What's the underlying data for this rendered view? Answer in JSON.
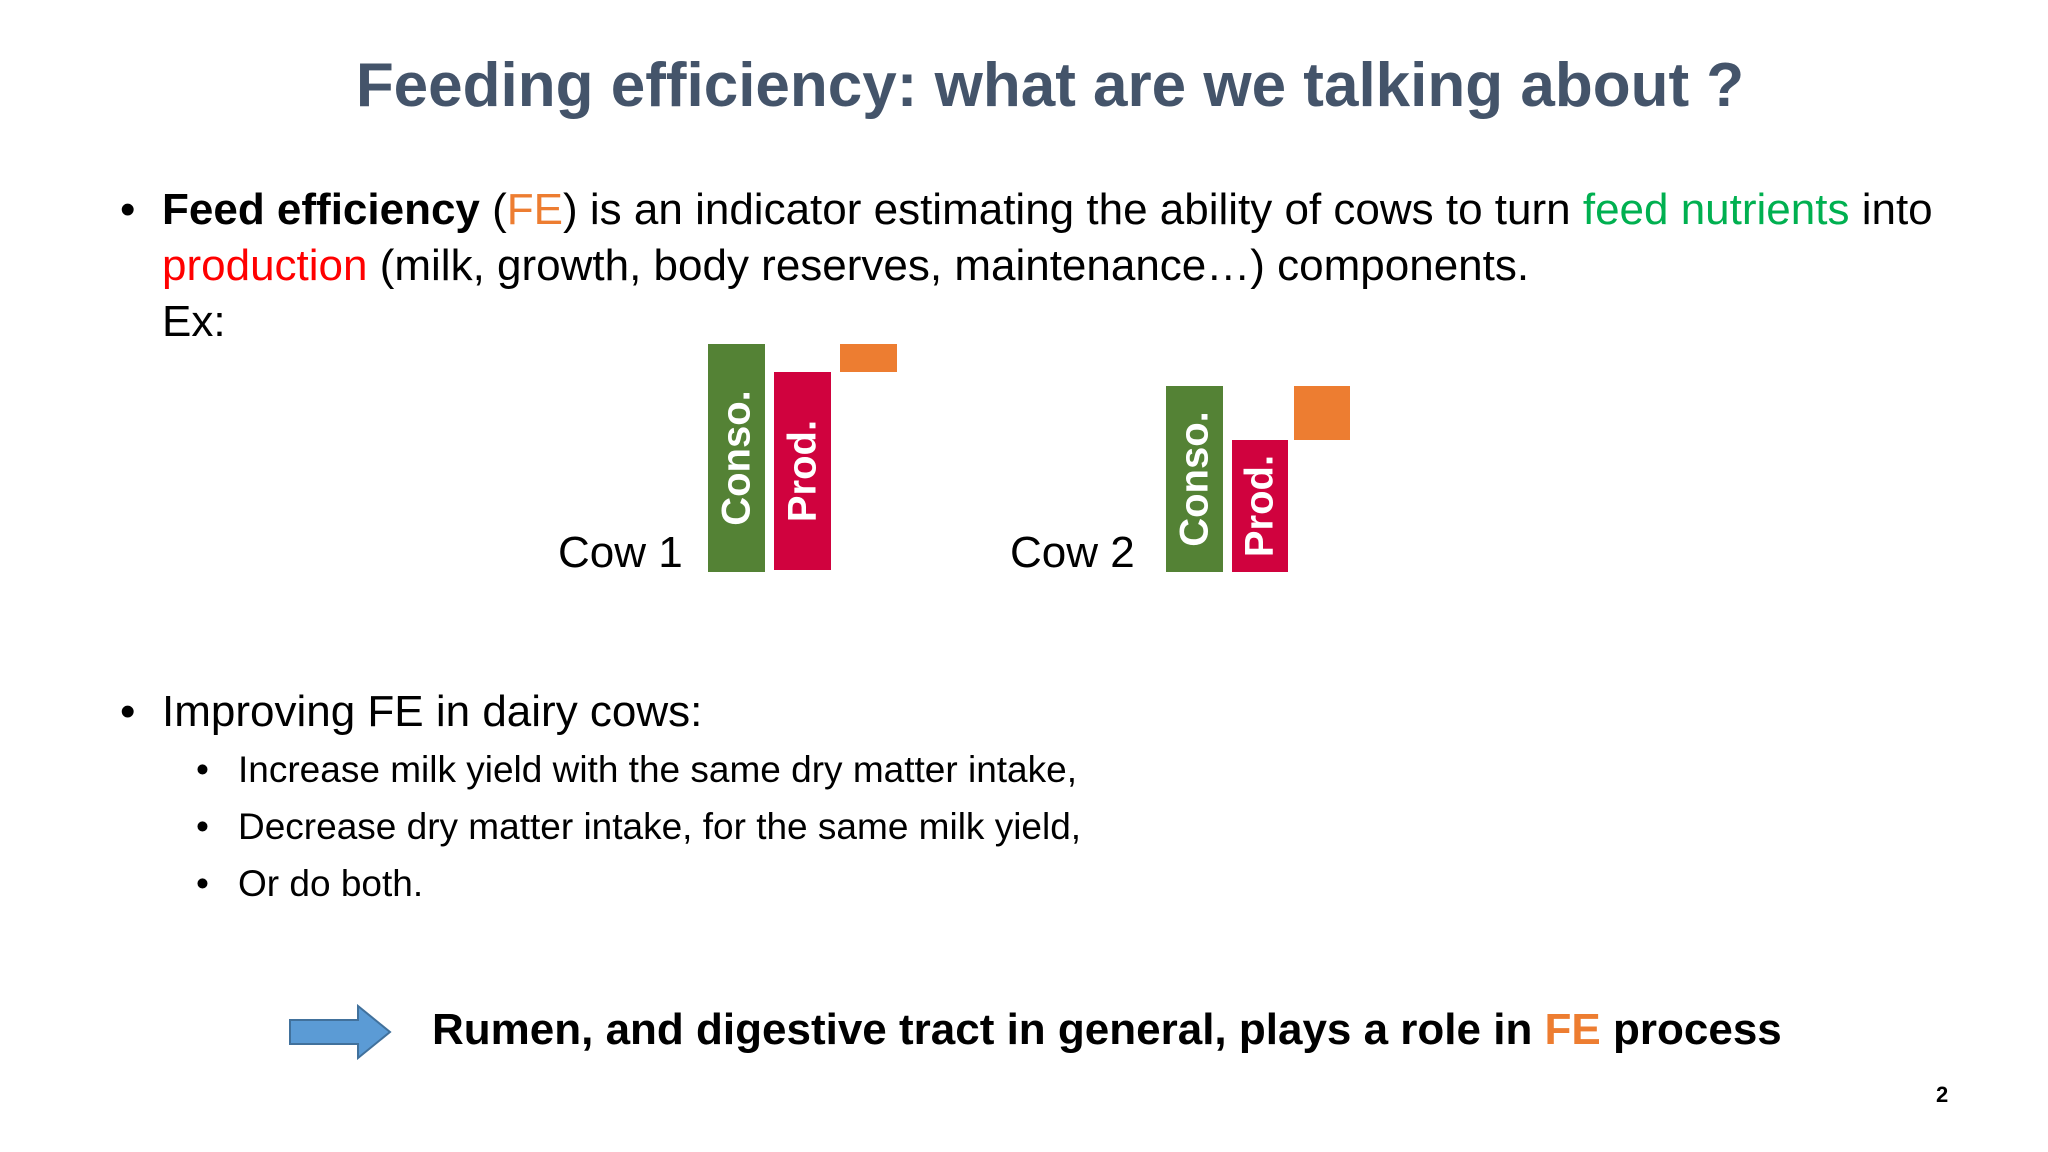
{
  "title": "Feeding efficiency: what are we talking about ?",
  "bullet1": {
    "term": "Feed efficiency",
    "open_paren": " (",
    "abbr": "FE",
    "mid": ") is an indicator estimating the ability of cows to turn ",
    "feed_nutrients": "feed nutrients",
    "into": " into ",
    "production": "production",
    "rest": " (milk, growth, body reserves, maintenance…) components.",
    "example": "Ex:"
  },
  "diagram": {
    "cows": [
      {
        "label": "Cow 1",
        "conso_label": "Conso.",
        "prod_label": "Prod."
      },
      {
        "label": "Cow 2",
        "conso_label": "Conso.",
        "prod_label": "Prod."
      }
    ],
    "colors": {
      "conso": "#548235",
      "prod": "#D0023E",
      "difference": "#ED7D31"
    }
  },
  "bullet2": {
    "text": "Improving FE in dairy cows:",
    "items": [
      "Increase milk yield with the same dry matter intake,",
      "Decrease dry matter intake, for the same milk yield,",
      "Or do both."
    ]
  },
  "conclusion": {
    "before": "Rumen, and digestive tract in general, plays a role in ",
    "abbr": "FE",
    "after": " process"
  },
  "page_number": "2",
  "bullet_char": "•"
}
